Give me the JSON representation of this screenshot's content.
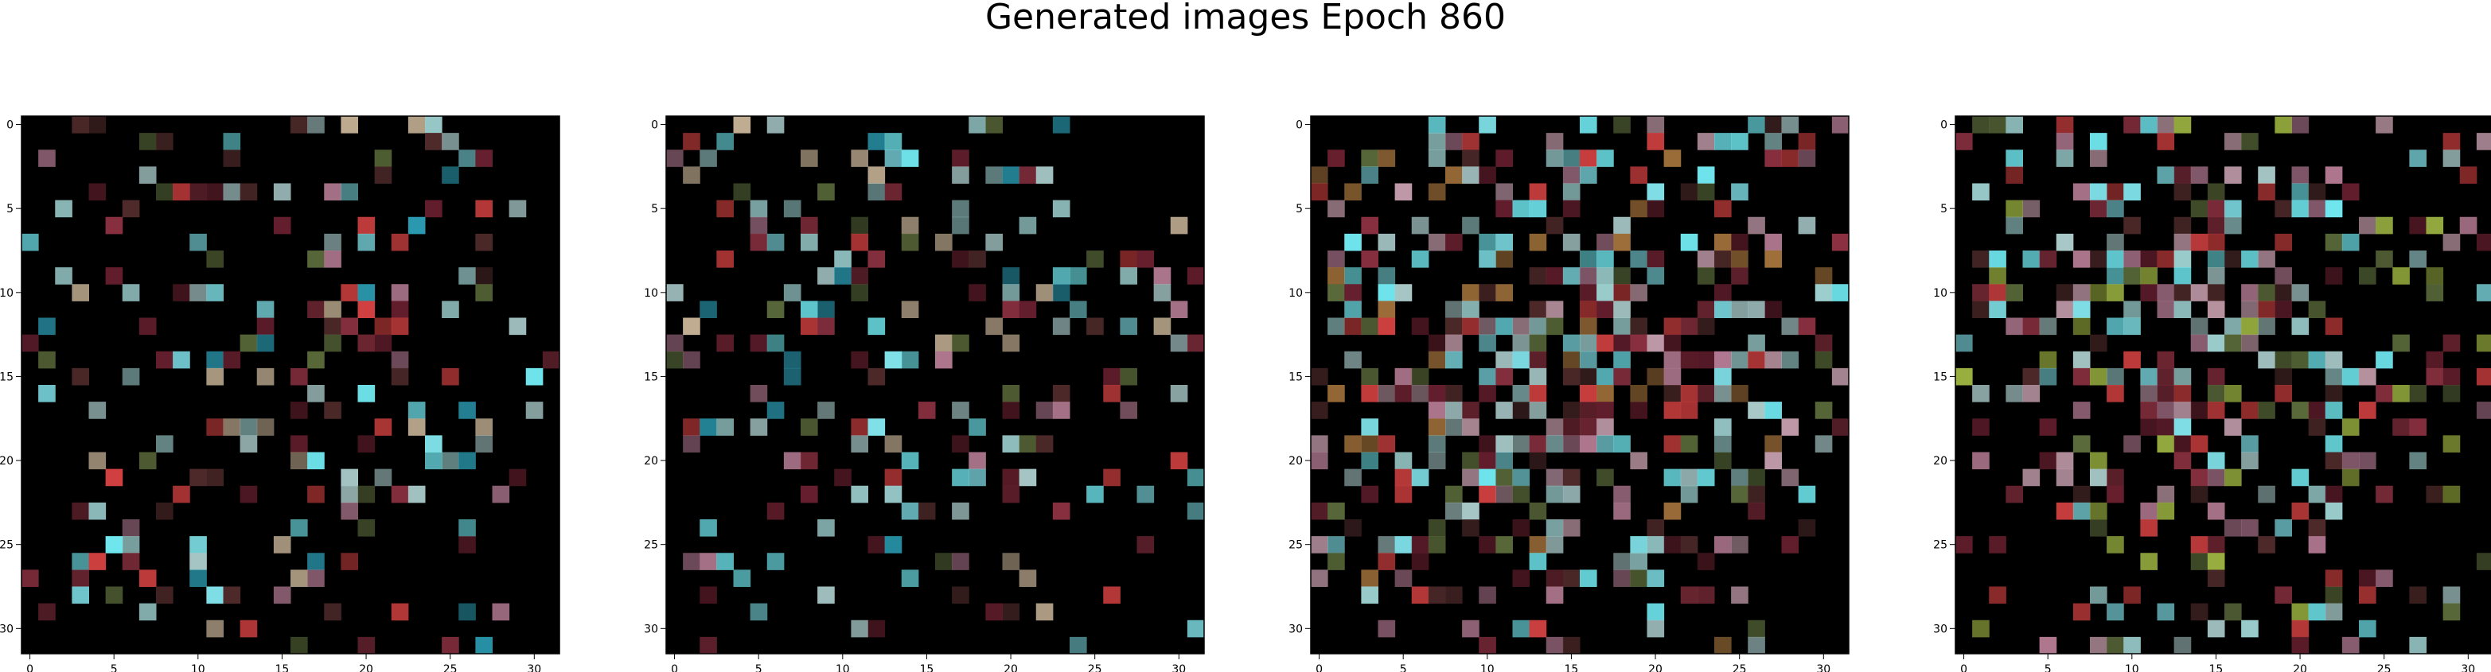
{
  "figure": {
    "title": "Generated images Epoch 860"
  },
  "chart_data": [
    {
      "type": "heatmap",
      "title": "",
      "xlabel": "",
      "ylabel": "",
      "x_ticks": [
        0,
        5,
        10,
        15,
        20,
        25,
        30
      ],
      "y_ticks": [
        0,
        5,
        10,
        15,
        20,
        25,
        30
      ],
      "xlim": [
        -0.5,
        31.5
      ],
      "ylim": [
        31.5,
        -0.5
      ],
      "grid": false,
      "seed": 11,
      "density": 0.32,
      "palette": [
        "#7fe0e8",
        "#6fe6ee",
        "#9fd2d2",
        "#a8c8c8",
        "#c4b094",
        "#8a3040",
        "#6a2030",
        "#b07890",
        "#4f2a2a",
        "#5a6a3a",
        "#2a9ab0",
        "#d04040"
      ]
    },
    {
      "type": "heatmap",
      "title": "",
      "xlabel": "",
      "ylabel": "",
      "x_ticks": [
        0,
        5,
        10,
        15,
        20,
        25,
        30
      ],
      "y_ticks": [
        0,
        5,
        10,
        15,
        20,
        25,
        30
      ],
      "xlim": [
        -0.5,
        31.5
      ],
      "ylim": [
        31.5,
        -0.5
      ],
      "grid": false,
      "seed": 13,
      "density": 0.32,
      "palette": [
        "#7fe0e8",
        "#6fe6ee",
        "#9fd2d2",
        "#a8c8c8",
        "#c4b094",
        "#8a3040",
        "#6a2030",
        "#b07890",
        "#4f2a2a",
        "#5a6a3a",
        "#2a9ab0",
        "#d04040"
      ]
    },
    {
      "type": "heatmap",
      "title": "",
      "xlabel": "",
      "ylabel": "",
      "x_ticks": [
        0,
        5,
        10,
        15,
        20,
        25,
        30
      ],
      "y_ticks": [
        0,
        5,
        10,
        15,
        20,
        25,
        30
      ],
      "xlim": [
        -0.5,
        31.5
      ],
      "ylim": [
        31.5,
        -0.5
      ],
      "grid": false,
      "seed": 17,
      "density": 0.62,
      "palette": [
        "#7fe0e8",
        "#6fe6ee",
        "#9fd2d2",
        "#a8c8c8",
        "#b07890",
        "#8a3040",
        "#6a2030",
        "#c09aa8",
        "#4f2a2a",
        "#5a6a3a",
        "#a0703a",
        "#d04040"
      ]
    },
    {
      "type": "heatmap",
      "title": "",
      "xlabel": "",
      "ylabel": "",
      "x_ticks": [
        0,
        5,
        10,
        15,
        20,
        25,
        30
      ],
      "y_ticks": [
        0,
        5,
        10,
        15,
        20,
        25,
        30
      ],
      "xlim": [
        -0.5,
        31.5
      ],
      "ylim": [
        31.5,
        -0.5
      ],
      "grid": false,
      "seed": 19,
      "density": 0.5,
      "palette": [
        "#7fe0e8",
        "#6fe6ee",
        "#9fd2d2",
        "#a8c8c8",
        "#b07890",
        "#8a3040",
        "#6a2030",
        "#c09aa8",
        "#4f2a2a",
        "#5a6a3a",
        "#9ab040",
        "#d04040"
      ]
    }
  ]
}
